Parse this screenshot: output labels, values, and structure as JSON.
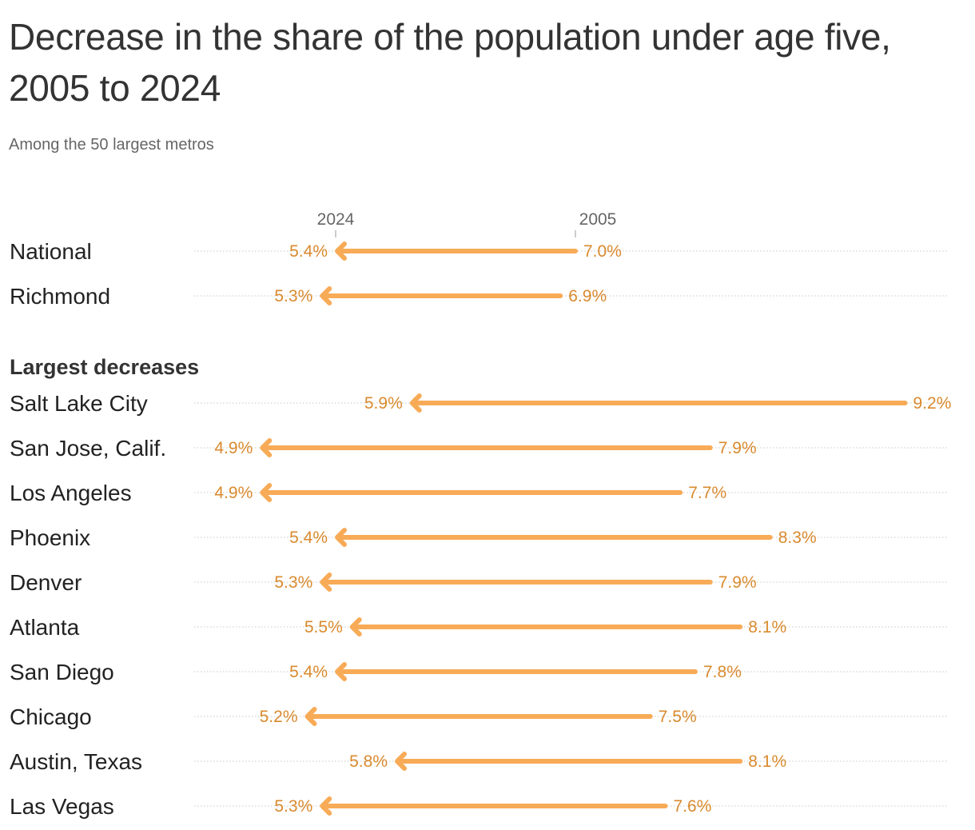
{
  "title": "Decrease in the share of the population under age five, 2005 to 2024",
  "subtitle": "Among the 50 largest metros",
  "colors": {
    "arrow": "#f8ab57",
    "value_text": "#d98a2e",
    "gridline": "#c8c8c8",
    "text": "#333333"
  },
  "chart_data": {
    "type": "arrow",
    "column_headers": {
      "end": "2024",
      "start": "2005"
    },
    "value_suffix": "%",
    "xlim": [
      4.0,
      9.6
    ],
    "groups": [
      {
        "label": "",
        "rows": [
          {
            "name": "National",
            "start": 7.0,
            "end": 5.4
          },
          {
            "name": "Richmond",
            "start": 6.9,
            "end": 5.3
          }
        ]
      },
      {
        "label": "Largest decreases",
        "rows": [
          {
            "name": "Salt Lake City",
            "start": 9.2,
            "end": 5.9
          },
          {
            "name": "San Jose, Calif.",
            "start": 7.9,
            "end": 4.9
          },
          {
            "name": "Los Angeles",
            "start": 7.7,
            "end": 4.9
          },
          {
            "name": "Phoenix",
            "start": 8.3,
            "end": 5.4
          },
          {
            "name": "Denver",
            "start": 7.9,
            "end": 5.3
          },
          {
            "name": "Atlanta",
            "start": 8.1,
            "end": 5.5
          },
          {
            "name": "San Diego",
            "start": 7.8,
            "end": 5.4
          },
          {
            "name": "Chicago",
            "start": 7.5,
            "end": 5.2
          },
          {
            "name": "Austin, Texas",
            "start": 8.1,
            "end": 5.8
          },
          {
            "name": "Las Vegas",
            "start": 7.6,
            "end": 5.3
          }
        ]
      }
    ]
  }
}
